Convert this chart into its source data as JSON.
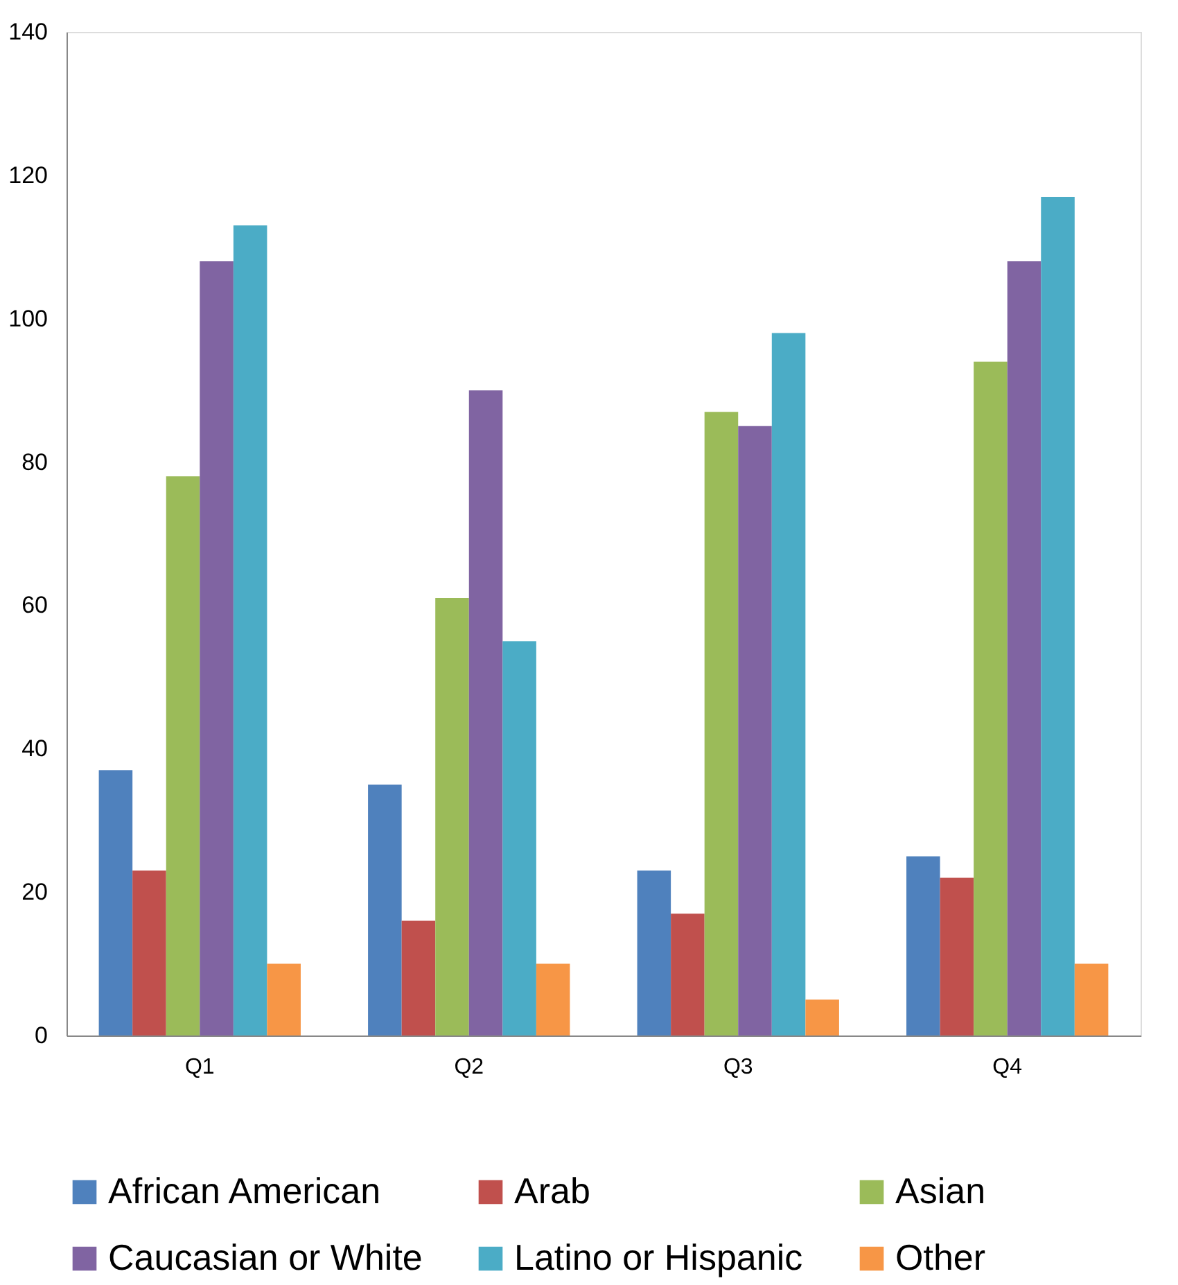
{
  "chart_data": {
    "type": "bar",
    "categories": [
      "Q1",
      "Q2",
      "Q3",
      "Q4"
    ],
    "series": [
      {
        "name": "African American",
        "color": "#4f81bd",
        "values": [
          37,
          35,
          23,
          25
        ]
      },
      {
        "name": "Arab",
        "color": "#c0504d",
        "values": [
          23,
          16,
          17,
          22
        ]
      },
      {
        "name": "Asian",
        "color": "#9bbb59",
        "values": [
          78,
          61,
          87,
          94
        ]
      },
      {
        "name": "Caucasian or White",
        "color": "#8064a2",
        "values": [
          108,
          90,
          85,
          108
        ]
      },
      {
        "name": "Latino or Hispanic",
        "color": "#4bacc6",
        "values": [
          113,
          55,
          98,
          117
        ]
      },
      {
        "name": "Other",
        "color": "#f79646",
        "values": [
          10,
          10,
          5,
          10
        ]
      }
    ],
    "ylim": [
      0,
      140
    ],
    "yticks": [
      0,
      20,
      40,
      60,
      80,
      100,
      120,
      140
    ],
    "grid": false,
    "legend": "bottom"
  }
}
